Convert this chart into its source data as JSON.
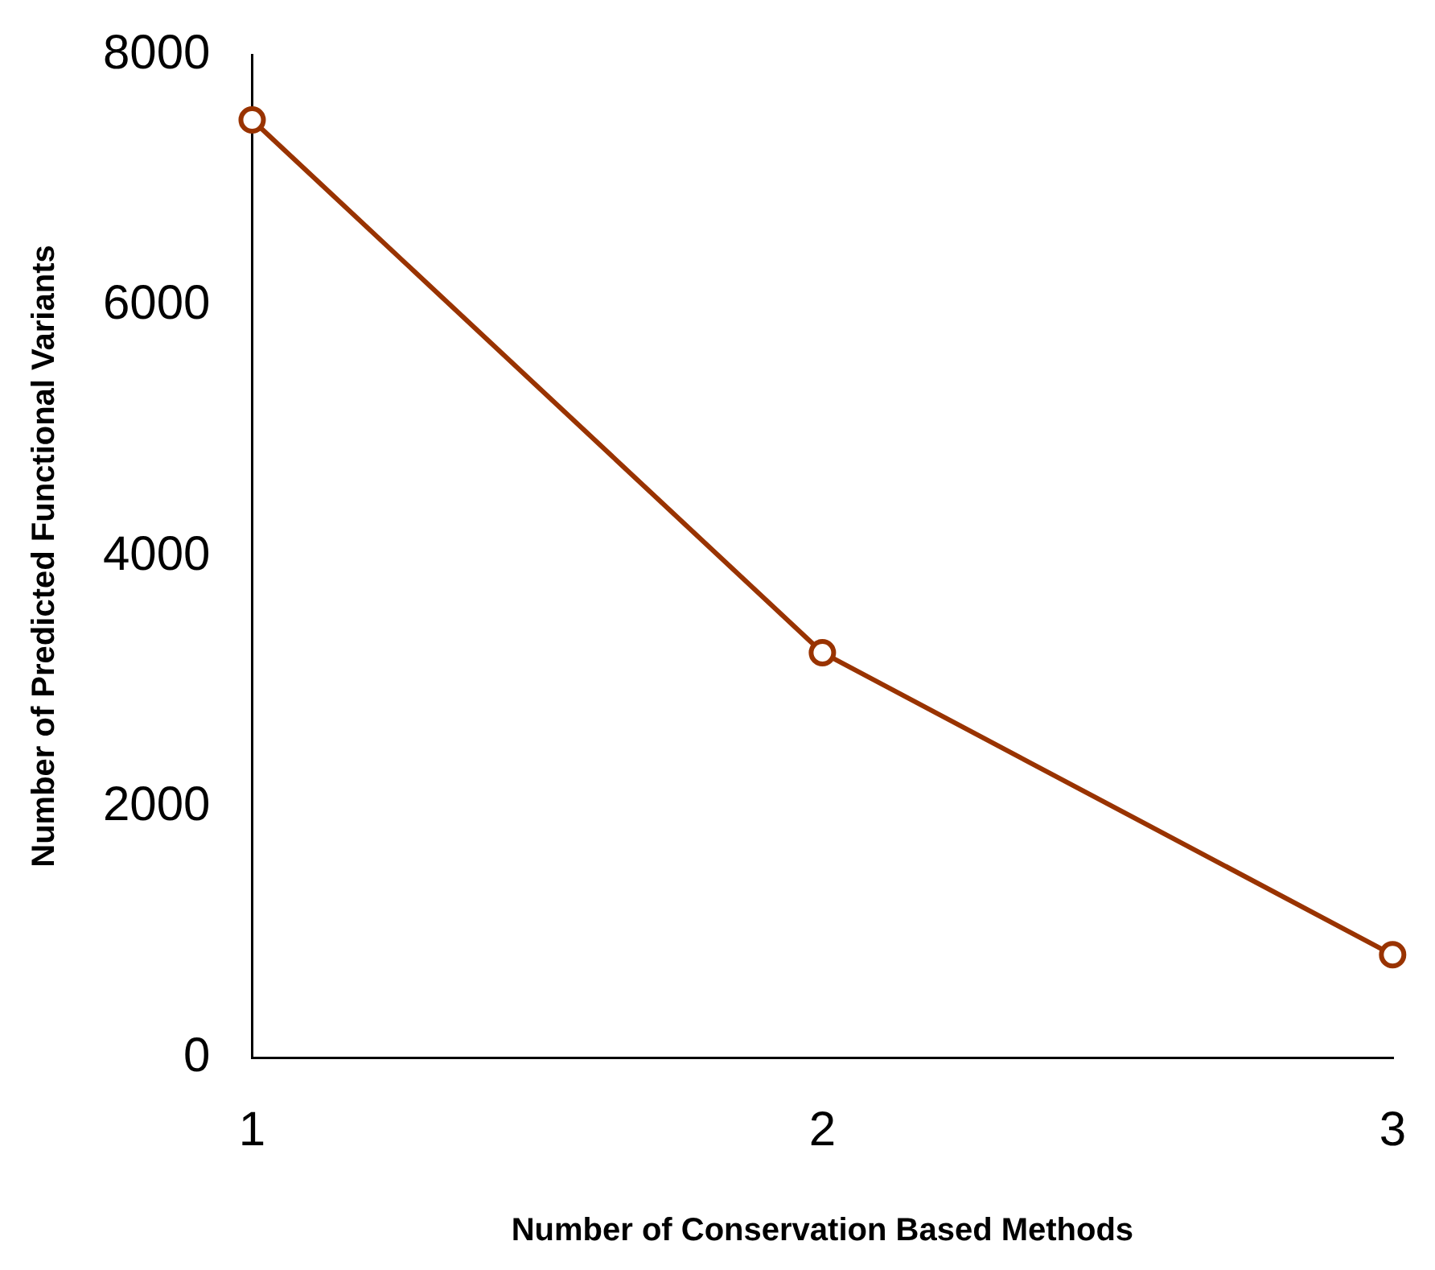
{
  "chart_data": {
    "type": "line",
    "xlabel": "Number of Conservation Based Methods",
    "ylabel": "Number of Predicted Functional Variants",
    "x": [
      1,
      2,
      3
    ],
    "series": [
      {
        "color": "#993300",
        "values": [
          7480,
          3230,
          820
        ]
      }
    ],
    "xlim": [
      1,
      3
    ],
    "xticks": [
      1,
      2,
      3
    ],
    "ylim": [
      0,
      8000
    ],
    "yticks": [
      0,
      2000,
      4000,
      6000,
      8000
    ],
    "grid": false,
    "legend": false,
    "marker": "circle",
    "line_style": "solid"
  }
}
